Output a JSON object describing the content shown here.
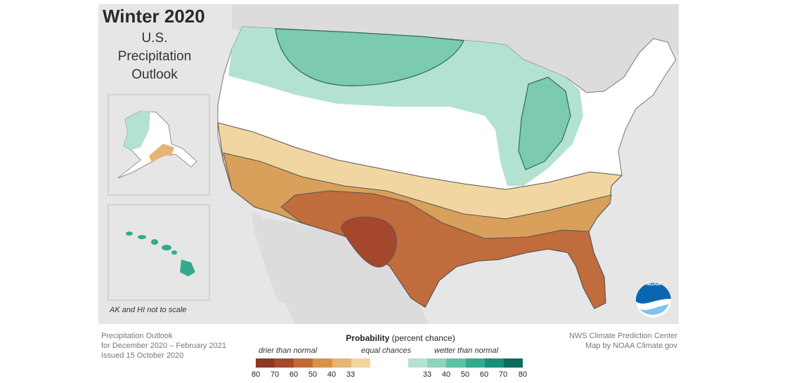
{
  "title": "Winter 2020",
  "subtitle_lines": [
    "U.S.",
    "Precipitation",
    "Outlook"
  ],
  "inset_note": "AK and HI not to scale",
  "outlook_info": {
    "line1": "Precipitation Outlook",
    "line2": "for December 2020 – February 2021",
    "line3": "Issued 15 October 2020"
  },
  "credits": {
    "line1": "NWS Climate Prediction Center",
    "line2": "Map by NOAA Climate.gov"
  },
  "legend": {
    "title_bold": "Probability",
    "title_rest": " (percent chance)",
    "categories": {
      "drier": "drier than normal",
      "equal": "equal chances",
      "wetter": "wetter than normal"
    },
    "swatches": [
      "#8c3a22",
      "#a44b2a",
      "#bf6a37",
      "#d6924b",
      "#e6b474",
      "#f2d6a2",
      "#ffffff",
      "#ffffff",
      "#b3e2d1",
      "#8fd3bb",
      "#5fc1a3",
      "#33a98e",
      "#188f7a",
      "#0c6c5e"
    ],
    "ticks": [
      "80",
      "70",
      "60",
      "50",
      "40",
      "33",
      "33",
      "40",
      "50",
      "60",
      "70",
      "80"
    ]
  },
  "logo_text": "NOAA",
  "map_colors": {
    "land": "#ffffff",
    "ocean": "#e6e6e6",
    "neighbor_land": "#dcdcdc",
    "wet_33_40": "#b3e2d1",
    "wet_40_50": "#7ccbb0",
    "dry_33_40": "#f2d6a2",
    "dry_40_50": "#d8a05a",
    "dry_50_60": "#c06c3c",
    "dry_60_70": "#a5472c",
    "border": "#555555"
  }
}
